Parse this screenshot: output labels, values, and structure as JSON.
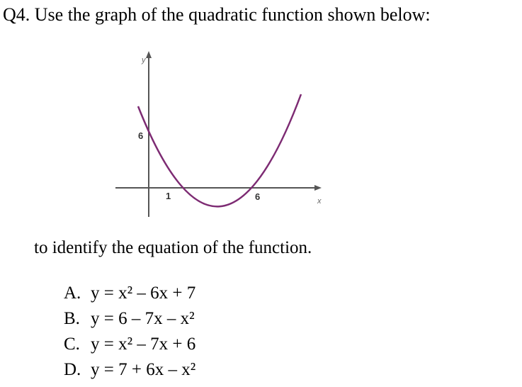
{
  "question": "Q4. Use the graph of the quadratic function shown below:",
  "graph": {
    "y_axis_label": "y",
    "x_axis_label": "x",
    "y_intercept_label": "6",
    "root_labels": [
      "1",
      "6"
    ]
  },
  "intro": "to identify the equation of the function.",
  "options": [
    {
      "letter": "A.",
      "text": "y = x² – 6x + 7"
    },
    {
      "letter": "B.",
      "text": "y = 6 – 7x – x²"
    },
    {
      "letter": "C.",
      "text": "y = x² – 7x + 6"
    },
    {
      "letter": "D.",
      "text": "y = 7 + 6x – x²"
    }
  ]
}
